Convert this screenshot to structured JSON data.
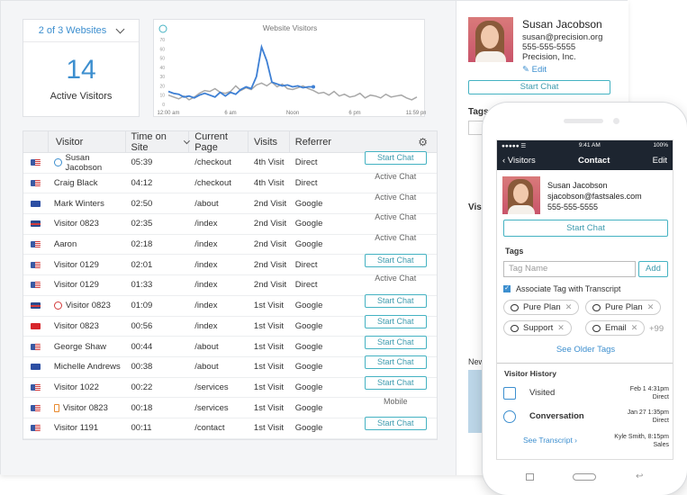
{
  "dashboard": {
    "site_selector": "2 of 3 Websites",
    "active_visitors": {
      "count": "14",
      "label": "Active Visitors"
    }
  },
  "chart": {
    "title": "Website Visitors",
    "xticks": [
      "12:00 am",
      "6 am",
      "Noon",
      "6 pm",
      "11:59 pm"
    ],
    "yticks": [
      "0",
      "10",
      "20",
      "30",
      "40",
      "50",
      "60",
      "70"
    ]
  },
  "chart_data": {
    "type": "line",
    "title": "Website Visitors",
    "x_categories": [
      "12:00 am",
      "6 am",
      "Noon",
      "6 pm",
      "11:59 pm"
    ],
    "ylim": [
      0,
      70
    ],
    "series": [
      {
        "name": "",
        "color": "#3d7fd4",
        "x": [
          0,
          0.5,
          1,
          1.5,
          2,
          2.5,
          3,
          3.5,
          4,
          4.5,
          5,
          5.5,
          6,
          6.5,
          7,
          7.5,
          8,
          8.5,
          9,
          9.5,
          10,
          10.5,
          11,
          11.5,
          12,
          12.5,
          13,
          13.5,
          14
        ],
        "values": [
          14,
          12,
          11,
          8,
          9,
          7,
          10,
          12,
          10,
          8,
          13,
          9,
          13,
          11,
          16,
          19,
          17,
          30,
          62,
          47,
          24,
          22,
          20,
          21,
          19,
          20,
          18,
          19,
          19
        ]
      },
      {
        "name": "",
        "color": "#a8a8a8",
        "x": [
          0,
          0.5,
          1,
          1.5,
          2,
          2.5,
          3,
          3.5,
          4,
          4.5,
          5,
          5.5,
          6,
          6.5,
          7,
          7.5,
          8,
          8.5,
          9,
          9.5,
          10,
          10.5,
          11,
          11.5,
          12,
          12.5,
          13,
          13.5,
          14,
          14.5,
          15,
          15.5,
          16,
          16.5,
          17,
          17.5,
          18,
          18.5,
          19,
          19.5,
          20,
          20.5,
          21,
          21.5,
          22,
          22.5,
          23,
          23.5,
          24
        ],
        "values": [
          10,
          8,
          6,
          9,
          5,
          8,
          12,
          15,
          14,
          17,
          13,
          12,
          14,
          20,
          15,
          18,
          16,
          21,
          23,
          20,
          24,
          19,
          22,
          17,
          16,
          18,
          20,
          17,
          15,
          12,
          13,
          10,
          14,
          9,
          11,
          8,
          9,
          12,
          7,
          10,
          9,
          7,
          11,
          8,
          9,
          10,
          7,
          5,
          8
        ]
      }
    ]
  },
  "table": {
    "headers": [
      "Visitor",
      "Time on Site",
      "Current Page",
      "Visits",
      "Referrer"
    ],
    "rows": [
      {
        "flag": "us",
        "icon": "info",
        "visitor": "Susan Jacobson",
        "time": "05:39",
        "page": "/checkout",
        "visits": "4th Visit",
        "referrer": "Direct",
        "action": "Start Chat",
        "action_type": "button"
      },
      {
        "flag": "us",
        "icon": "",
        "visitor": "Craig Black",
        "time": "04:12",
        "page": "/checkout",
        "visits": "4th Visit",
        "referrer": "Direct",
        "action": "Active Chat",
        "action_type": "status"
      },
      {
        "flag": "eu",
        "icon": "",
        "visitor": "Mark Winters",
        "time": "02:50",
        "page": "/about",
        "visits": "2nd Visit",
        "referrer": "Google",
        "action": "Active Chat",
        "action_type": "status"
      },
      {
        "flag": "uk",
        "icon": "",
        "visitor": "Visitor 0823",
        "time": "02:35",
        "page": "/index",
        "visits": "2nd Visit",
        "referrer": "Google",
        "action": "Active Chat",
        "action_type": "status"
      },
      {
        "flag": "us",
        "icon": "",
        "visitor": "Aaron",
        "time": "02:18",
        "page": "/index",
        "visits": "2nd Visit",
        "referrer": "Google",
        "action": "Active Chat",
        "action_type": "status"
      },
      {
        "flag": "us",
        "icon": "",
        "visitor": "Visitor 0129",
        "time": "02:01",
        "page": "/index",
        "visits": "2nd Visit",
        "referrer": "Direct",
        "action": "Start Chat",
        "action_type": "button"
      },
      {
        "flag": "us",
        "icon": "",
        "visitor": "Visitor 0129",
        "time": "01:33",
        "page": "/index",
        "visits": "2nd Visit",
        "referrer": "Direct",
        "action": "Active Chat",
        "action_type": "status"
      },
      {
        "flag": "uk",
        "icon": "blocked",
        "visitor": "Visitor 0823",
        "time": "01:09",
        "page": "/index",
        "visits": "1st Visit",
        "referrer": "Google",
        "action": "Start Chat",
        "action_type": "button"
      },
      {
        "flag": "tr",
        "icon": "",
        "visitor": "Visitor 0823",
        "time": "00:56",
        "page": "/index",
        "visits": "1st Visit",
        "referrer": "Google",
        "action": "Start Chat",
        "action_type": "button"
      },
      {
        "flag": "us",
        "icon": "",
        "visitor": "George Shaw",
        "time": "00:44",
        "page": "/about",
        "visits": "1st Visit",
        "referrer": "Google",
        "action": "Start Chat",
        "action_type": "button"
      },
      {
        "flag": "eu",
        "icon": "",
        "visitor": "Michelle Andrews",
        "time": "00:38",
        "page": "/about",
        "visits": "1st Visit",
        "referrer": "Google",
        "action": "Start Chat",
        "action_type": "button"
      },
      {
        "flag": "us",
        "icon": "",
        "visitor": "Visitor 1022",
        "time": "00:22",
        "page": "/services",
        "visits": "1st Visit",
        "referrer": "Google",
        "action": "Start Chat",
        "action_type": "button"
      },
      {
        "flag": "us",
        "icon": "mobile",
        "visitor": "Visitor 0823",
        "time": "00:18",
        "page": "/services",
        "visits": "1st Visit",
        "referrer": "Google",
        "action": "Mobile",
        "action_type": "status"
      },
      {
        "flag": "us",
        "icon": "",
        "visitor": "Visitor 1191",
        "time": "00:11",
        "page": "/contact",
        "visits": "1st Visit",
        "referrer": "Google",
        "action": "Start Chat",
        "action_type": "button"
      }
    ]
  },
  "profile": {
    "name": "Susan Jacobson",
    "email": "susan@precision.org",
    "phone": "555-555-5555",
    "company": "Precision, Inc.",
    "edit_label": "Edit",
    "start_chat": "Start Chat",
    "tags_label": "Tags",
    "visit_label": "Visi",
    "location": "Newar"
  },
  "phone": {
    "status_time": "9:41 AM",
    "battery": "100%",
    "back_label": "Visitors",
    "title": "Contact",
    "edit_label": "Edit",
    "name": "Susan Jacobson",
    "email": "sjacobson@fastsales.com",
    "phone": "555-555-5555",
    "start_chat": "Start Chat",
    "tags_label": "Tags",
    "tag_placeholder": "Tag Name",
    "add_label": "Add",
    "associate_label": "Associate Tag with Transcript",
    "tags": [
      "Pure Plan",
      "Pure Plan",
      "Support",
      "Email"
    ],
    "more_tags": "+99",
    "older_tags": "See Older Tags",
    "history_label": "Visitor History",
    "history": [
      {
        "label": "Visited",
        "date": "Feb 1 4:31pm",
        "type": "Direct"
      },
      {
        "label": "Conversation",
        "date": "Jan 27 1:35pm",
        "type": "Direct"
      },
      {
        "label": "See Transcript",
        "date": "Kyle Smith, 8:15pm",
        "type": "Sales"
      }
    ]
  }
}
